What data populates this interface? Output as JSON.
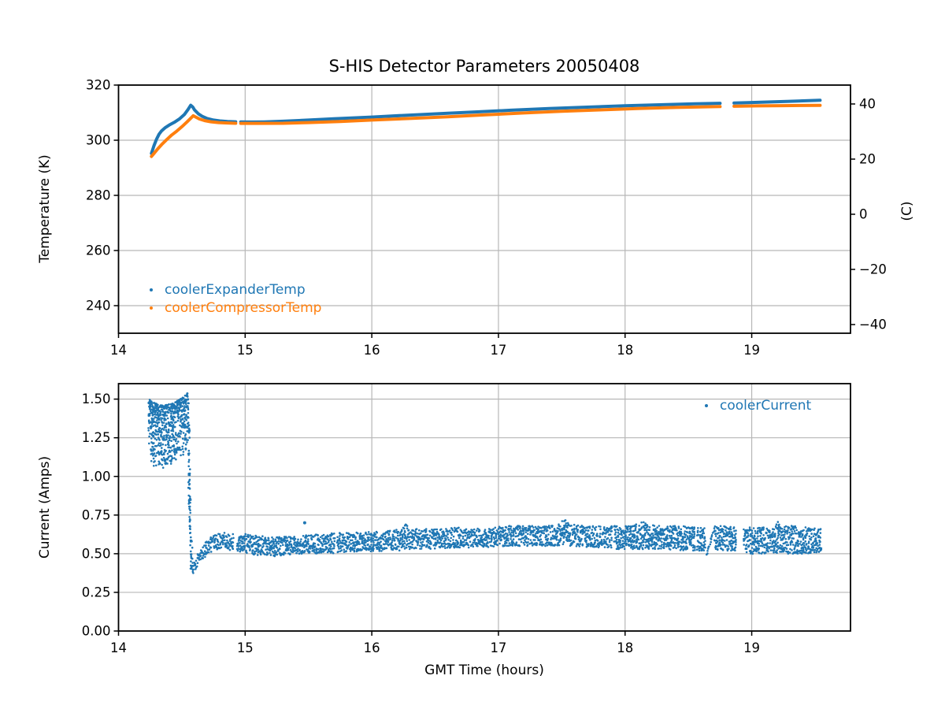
{
  "figure": {
    "background": "#ffffff"
  },
  "colors": {
    "blue": "#1f77b4",
    "orange": "#ff7f0e",
    "grid": "#b7b7b7",
    "spine": "#000000",
    "text": "#000000"
  },
  "chart_data": [
    {
      "type": "scatter",
      "title": "S-HIS Detector Parameters 20050408",
      "ylabel": "Temperature (K)",
      "ylabel_right": "(C)",
      "xlim": [
        14,
        19.78
      ],
      "ylim": [
        230,
        320
      ],
      "grid": true,
      "legend_position": "lower-left",
      "xticks": [
        {
          "label": "14",
          "value": 14
        },
        {
          "label": "15",
          "value": 15
        },
        {
          "label": "16",
          "value": 16
        },
        {
          "label": "17",
          "value": 17
        },
        {
          "label": "18",
          "value": 18
        },
        {
          "label": "19",
          "value": 19
        }
      ],
      "yticks": [
        {
          "label": "240",
          "value": 240
        },
        {
          "label": "260",
          "value": 260
        },
        {
          "label": "280",
          "value": 280
        },
        {
          "label": "300",
          "value": 300
        },
        {
          "label": "320",
          "value": 320
        }
      ],
      "yticks_right": [
        {
          "label": "40",
          "value": 313.15
        },
        {
          "label": "20",
          "value": 293.15
        },
        {
          "label": "0",
          "value": 273.15
        },
        {
          "label": "−20",
          "value": 253.15
        },
        {
          "label": "−40",
          "value": 233.15
        }
      ],
      "gaps": [
        [
          14.925,
          14.965
        ],
        [
          18.75,
          18.86
        ]
      ],
      "series": [
        {
          "name": "coolerExpanderTemp",
          "color": "#1f77b4",
          "points": [
            [
              14.26,
              295.2
            ],
            [
              14.27,
              296.6
            ],
            [
              14.28,
              298.0
            ],
            [
              14.3,
              300.3
            ],
            [
              14.32,
              302.2
            ],
            [
              14.34,
              303.4
            ],
            [
              14.37,
              304.6
            ],
            [
              14.4,
              305.5
            ],
            [
              14.44,
              306.5
            ],
            [
              14.48,
              307.7
            ],
            [
              14.52,
              309.3
            ],
            [
              14.55,
              311.2
            ],
            [
              14.57,
              312.7
            ],
            [
              14.585,
              312.1
            ],
            [
              14.6,
              311.0
            ],
            [
              14.63,
              309.6
            ],
            [
              14.66,
              308.7
            ],
            [
              14.7,
              307.9
            ],
            [
              14.75,
              307.3
            ],
            [
              14.8,
              307.0
            ],
            [
              14.86,
              306.8
            ],
            [
              14.925,
              306.7
            ],
            [
              14.965,
              306.65
            ],
            [
              15.05,
              306.6
            ],
            [
              15.15,
              306.65
            ],
            [
              15.3,
              306.9
            ],
            [
              15.5,
              307.3
            ],
            [
              15.7,
              307.8
            ],
            [
              16.0,
              308.4
            ],
            [
              16.3,
              309.1
            ],
            [
              16.6,
              309.8
            ],
            [
              16.85,
              310.3
            ],
            [
              17.1,
              310.9
            ],
            [
              17.4,
              311.5
            ],
            [
              17.7,
              312.0
            ],
            [
              18.0,
              312.5
            ],
            [
              18.3,
              312.9
            ],
            [
              18.55,
              313.2
            ],
            [
              18.75,
              313.4
            ],
            [
              18.86,
              313.5
            ],
            [
              19.0,
              313.7
            ],
            [
              19.15,
              313.9
            ],
            [
              19.3,
              314.1
            ],
            [
              19.45,
              314.35
            ],
            [
              19.54,
              314.5
            ]
          ]
        },
        {
          "name": "coolerCompressorTemp",
          "color": "#ff7f0e",
          "points": [
            [
              14.26,
              294.1
            ],
            [
              14.28,
              295.2
            ],
            [
              14.31,
              296.9
            ],
            [
              14.34,
              298.4
            ],
            [
              14.38,
              300.2
            ],
            [
              14.42,
              301.9
            ],
            [
              14.46,
              303.3
            ],
            [
              14.5,
              304.9
            ],
            [
              14.54,
              306.6
            ],
            [
              14.575,
              308.2
            ],
            [
              14.59,
              308.9
            ],
            [
              14.61,
              308.4
            ],
            [
              14.64,
              307.7
            ],
            [
              14.68,
              307.1
            ],
            [
              14.73,
              306.7
            ],
            [
              14.79,
              306.4
            ],
            [
              14.86,
              306.25
            ],
            [
              14.925,
              306.15
            ],
            [
              14.965,
              306.1
            ],
            [
              15.1,
              306.1
            ],
            [
              15.3,
              306.15
            ],
            [
              15.5,
              306.4
            ],
            [
              15.75,
              306.8
            ],
            [
              16.0,
              307.3
            ],
            [
              16.3,
              307.9
            ],
            [
              16.6,
              308.5
            ],
            [
              16.9,
              309.2
            ],
            [
              17.2,
              309.9
            ],
            [
              17.5,
              310.5
            ],
            [
              17.8,
              311.0
            ],
            [
              18.1,
              311.5
            ],
            [
              18.4,
              311.9
            ],
            [
              18.75,
              312.2
            ],
            [
              18.86,
              312.3
            ],
            [
              19.05,
              312.45
            ],
            [
              19.25,
              312.55
            ],
            [
              19.4,
              312.6
            ],
            [
              19.54,
              312.65
            ]
          ]
        }
      ]
    },
    {
      "type": "scatter",
      "xlabel": "GMT Time (hours)",
      "ylabel": "Current (Amps)",
      "xlim": [
        14,
        19.78
      ],
      "ylim": [
        0,
        1.6
      ],
      "grid": true,
      "legend_position": "upper-right",
      "xticks": [
        {
          "label": "14",
          "value": 14
        },
        {
          "label": "15",
          "value": 15
        },
        {
          "label": "16",
          "value": 16
        },
        {
          "label": "17",
          "value": 17
        },
        {
          "label": "18",
          "value": 18
        },
        {
          "label": "19",
          "value": 19
        }
      ],
      "yticks": [
        {
          "label": "0.00",
          "value": 0
        },
        {
          "label": "0.25",
          "value": 0.25
        },
        {
          "label": "0.50",
          "value": 0.5
        },
        {
          "label": "0.75",
          "value": 0.75
        },
        {
          "label": "1.00",
          "value": 1.0
        },
        {
          "label": "1.25",
          "value": 1.25
        },
        {
          "label": "1.50",
          "value": 1.5
        }
      ],
      "series": [
        {
          "name": "coolerCurrent",
          "color": "#1f77b4",
          "band": [
            [
              14.24,
              1.09,
              1.5
            ],
            [
              14.28,
              1.06,
              1.48
            ],
            [
              14.32,
              1.05,
              1.46
            ],
            [
              14.37,
              1.06,
              1.46
            ],
            [
              14.42,
              1.08,
              1.47
            ],
            [
              14.47,
              1.11,
              1.49
            ],
            [
              14.51,
              1.14,
              1.51
            ],
            [
              14.55,
              1.18,
              1.54
            ],
            [
              14.558,
              0.8,
              1.35
            ],
            [
              14.567,
              0.5,
              1.0
            ],
            [
              14.575,
              0.37,
              0.6
            ],
            [
              14.59,
              0.375,
              0.45
            ],
            [
              14.61,
              0.4,
              0.47
            ],
            [
              14.64,
              0.44,
              0.52
            ],
            [
              14.67,
              0.47,
              0.56
            ],
            [
              14.71,
              0.5,
              0.6
            ],
            [
              14.76,
              0.52,
              0.62
            ],
            [
              14.83,
              0.53,
              0.64
            ],
            [
              14.905,
              0.52,
              0.63
            ],
            [
              14.94,
              0.51,
              0.63
            ],
            [
              15.0,
              0.5,
              0.63
            ],
            [
              15.1,
              0.49,
              0.62
            ],
            [
              15.2,
              0.48,
              0.61
            ],
            [
              15.35,
              0.49,
              0.61
            ],
            [
              15.5,
              0.5,
              0.62
            ],
            [
              15.65,
              0.5,
              0.63
            ],
            [
              15.8,
              0.51,
              0.64
            ],
            [
              16.0,
              0.51,
              0.64
            ],
            [
              16.15,
              0.52,
              0.65
            ],
            [
              16.24,
              0.52,
              0.66
            ],
            [
              16.27,
              0.53,
              0.7
            ],
            [
              16.3,
              0.53,
              0.66
            ],
            [
              16.5,
              0.53,
              0.66
            ],
            [
              16.7,
              0.54,
              0.67
            ],
            [
              16.9,
              0.54,
              0.67
            ],
            [
              17.1,
              0.55,
              0.68
            ],
            [
              17.3,
              0.55,
              0.68
            ],
            [
              17.48,
              0.55,
              0.69
            ],
            [
              17.52,
              0.56,
              0.73
            ],
            [
              17.56,
              0.55,
              0.69
            ],
            [
              17.7,
              0.54,
              0.68
            ],
            [
              17.893,
              0.54,
              0.68
            ],
            [
              17.917,
              0.53,
              0.68
            ],
            [
              18.05,
              0.53,
              0.68
            ],
            [
              18.14,
              0.53,
              0.71
            ],
            [
              18.18,
              0.53,
              0.69
            ],
            [
              18.3,
              0.53,
              0.68
            ],
            [
              18.45,
              0.52,
              0.68
            ],
            [
              18.548,
              0.52,
              0.67
            ],
            [
              18.572,
              0.52,
              0.67
            ],
            [
              18.63,
              0.52,
              0.67
            ],
            [
              18.71,
              0.52,
              0.68
            ],
            [
              18.8,
              0.52,
              0.68
            ],
            [
              18.873,
              0.52,
              0.67
            ],
            [
              18.94,
              0.5,
              0.67
            ],
            [
              19.05,
              0.5,
              0.67
            ],
            [
              19.18,
              0.5,
              0.68
            ],
            [
              19.21,
              0.5,
              0.71
            ],
            [
              19.25,
              0.5,
              0.68
            ],
            [
              19.35,
              0.5,
              0.68
            ],
            [
              19.45,
              0.5,
              0.67
            ],
            [
              19.55,
              0.51,
              0.66
            ]
          ],
          "gaps": [
            [
              14.905,
              14.94
            ],
            [
              15.705,
              15.728
            ],
            [
              17.893,
              17.917
            ],
            [
              18.548,
              18.572
            ],
            [
              18.63,
              18.71
            ],
            [
              18.873,
              18.94
            ]
          ],
          "streaks": [
            [
              18.645,
              0.49,
              18.705,
              0.67
            ]
          ],
          "outliers": [
            [
              15.47,
              0.7
            ]
          ]
        }
      ]
    }
  ]
}
